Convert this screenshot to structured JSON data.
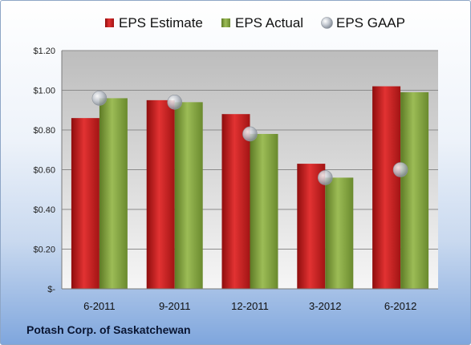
{
  "company": "Potash Corp. of Saskatchewan",
  "colors": {
    "estimate": "#c41f1f",
    "actual": "#7e9c3c",
    "gaap": "#b9bec6"
  },
  "chart_data": {
    "type": "bar",
    "categories": [
      "6-2011",
      "9-2011",
      "12-2011",
      "3-2012",
      "6-2012"
    ],
    "series": [
      {
        "name": "EPS Estimate",
        "kind": "bar",
        "values": [
          0.86,
          0.95,
          0.88,
          0.63,
          1.02
        ]
      },
      {
        "name": "EPS Actual",
        "kind": "bar",
        "values": [
          0.96,
          0.94,
          0.78,
          0.56,
          0.99
        ]
      },
      {
        "name": "EPS GAAP",
        "kind": "point",
        "values": [
          0.96,
          0.94,
          0.78,
          0.56,
          0.6
        ]
      }
    ],
    "y_ticks": [
      {
        "value": 0.0,
        "label": "$-"
      },
      {
        "value": 0.2,
        "label": "$0.20"
      },
      {
        "value": 0.4,
        "label": "$0.40"
      },
      {
        "value": 0.6,
        "label": "$0.60"
      },
      {
        "value": 0.8,
        "label": "$0.80"
      },
      {
        "value": 1.0,
        "label": "$1.00"
      },
      {
        "value": 1.2,
        "label": "$1.20"
      }
    ],
    "ylim": [
      0,
      1.2
    ],
    "grid": true,
    "legend": "top"
  }
}
